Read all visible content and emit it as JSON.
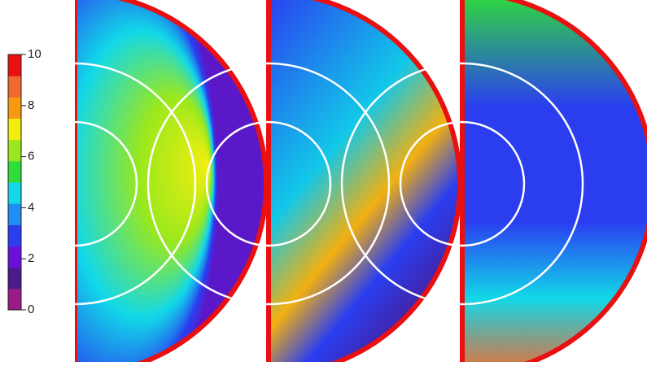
{
  "chart_data": {
    "type": "heatmap",
    "zlim": [
      0,
      10
    ],
    "zticks": [
      0,
      2,
      4,
      6,
      8,
      10
    ],
    "colors": [
      "#9a1a86",
      "#4b1a8c",
      "#6a10d8",
      "#2a3ef0",
      "#1f8ef5",
      "#12d8e8",
      "#2fdc3a",
      "#9ae81c",
      "#f2ee10",
      "#f79a10",
      "#f06a30",
      "#e81010"
    ]
  }
}
